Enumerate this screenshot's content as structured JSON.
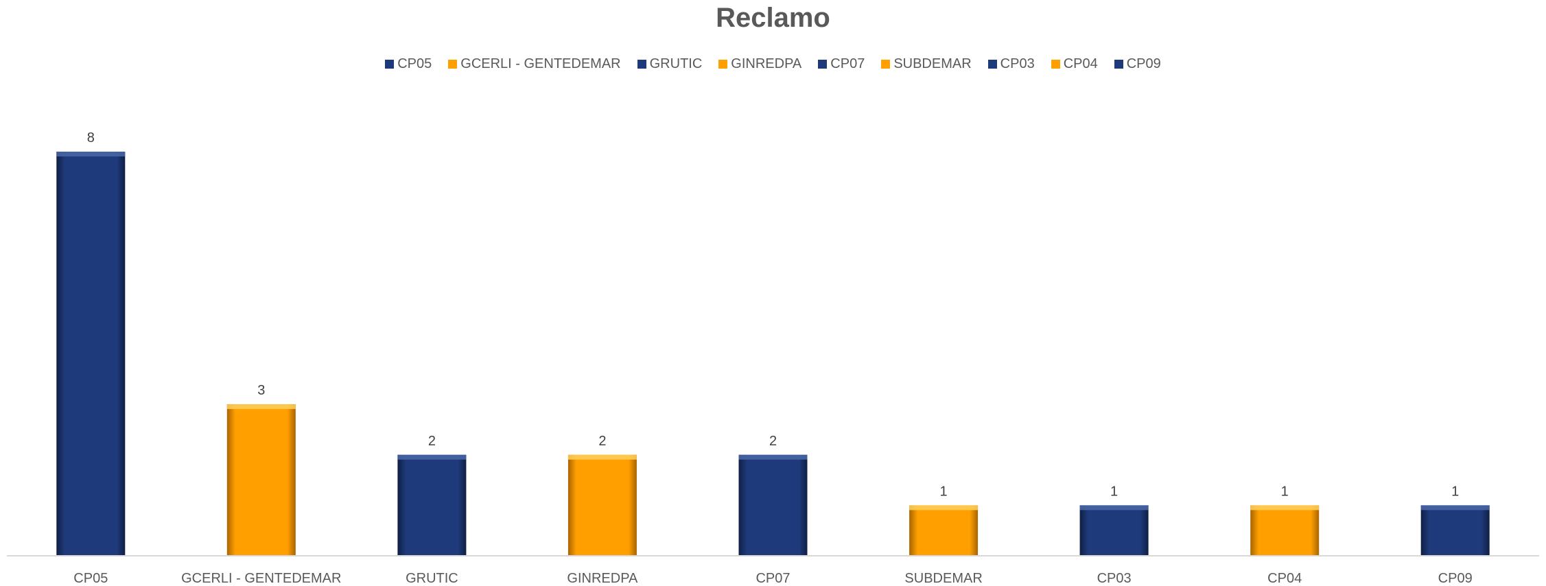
{
  "chart_data": {
    "type": "bar",
    "title": "Reclamo",
    "xlabel": "",
    "ylabel": "",
    "categories": [
      "CP05",
      "GCERLI - GENTEDEMAR",
      "GRUTIC",
      "GINREDPA",
      "CP07",
      "SUBDEMAR",
      "CP03",
      "CP04",
      "CP09"
    ],
    "values": [
      8,
      3,
      2,
      2,
      2,
      1,
      1,
      1,
      1
    ],
    "bar_colors": [
      "#1f3a7a",
      "#ffa000",
      "#1f3a7a",
      "#ffa000",
      "#1f3a7a",
      "#ffa000",
      "#1f3a7a",
      "#ffa000",
      "#1f3a7a"
    ],
    "ylim": [
      0,
      8
    ],
    "grid": false,
    "legend_position": "top-center",
    "legend": [
      "CP05",
      "GCERLI - GENTEDEMAR",
      "GRUTIC",
      "GINREDPA",
      "CP07",
      "SUBDEMAR",
      "CP03",
      "CP04",
      "CP09"
    ],
    "data_labels": true
  }
}
